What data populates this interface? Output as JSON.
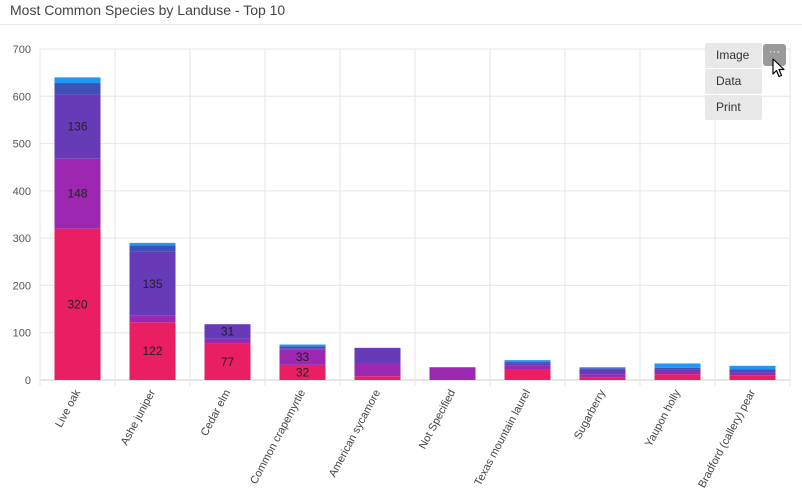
{
  "title": "Most Common Species by Landuse - Top 10",
  "menu": {
    "button_label": "···",
    "items": [
      "Image",
      "Data",
      "Print"
    ]
  },
  "colors": {
    "series": [
      "#e91e63",
      "#9c27b0",
      "#673ab7",
      "#3f51b5",
      "#2196f3"
    ],
    "grid": "#e6e6e6",
    "axis": "#cccccc"
  },
  "chart_data": {
    "type": "bar",
    "stacked": true,
    "title": "Most Common Species by Landuse - Top 10",
    "xlabel": "",
    "ylabel": "",
    "ylim": [
      0,
      700
    ],
    "yticks": [
      0,
      100,
      200,
      300,
      400,
      500,
      600,
      700
    ],
    "categories": [
      "Live oak",
      "Ashe juniper",
      "Cedar elm",
      "Common crapemyrtle",
      "American sycamore",
      "Not Specified",
      "Texas mountain laurel",
      "Sugarberry",
      "Yaupon holly",
      "Bradford (callery) pear"
    ],
    "series": [
      {
        "values": [
          320,
          122,
          77,
          32,
          8,
          0,
          22,
          6,
          12,
          10
        ],
        "labels": [
          "320",
          "122",
          "77",
          "32",
          "",
          "",
          "",
          "",
          "",
          ""
        ]
      },
      {
        "values": [
          148,
          14,
          10,
          33,
          28,
          27,
          8,
          6,
          5,
          5
        ],
        "labels": [
          "148",
          "",
          "",
          "33",
          "",
          "",
          "",
          "",
          "",
          ""
        ]
      },
      {
        "values": [
          136,
          135,
          31,
          2,
          32,
          0,
          4,
          10,
          5,
          5
        ],
        "labels": [
          "136",
          "135",
          "31",
          "",
          "",
          "",
          "",
          "",
          "",
          ""
        ]
      },
      {
        "values": [
          24,
          14,
          0,
          4,
          0,
          0,
          4,
          3,
          4,
          3
        ],
        "labels": [
          "",
          "",
          "",
          "",
          "",
          "",
          "",
          "",
          "",
          ""
        ]
      },
      {
        "values": [
          12,
          5,
          0,
          4,
          0,
          0,
          4,
          2,
          9,
          7
        ],
        "labels": [
          "",
          "",
          "",
          "",
          "",
          "",
          "",
          "",
          "",
          ""
        ]
      }
    ],
    "grid": true,
    "legend": "none"
  }
}
